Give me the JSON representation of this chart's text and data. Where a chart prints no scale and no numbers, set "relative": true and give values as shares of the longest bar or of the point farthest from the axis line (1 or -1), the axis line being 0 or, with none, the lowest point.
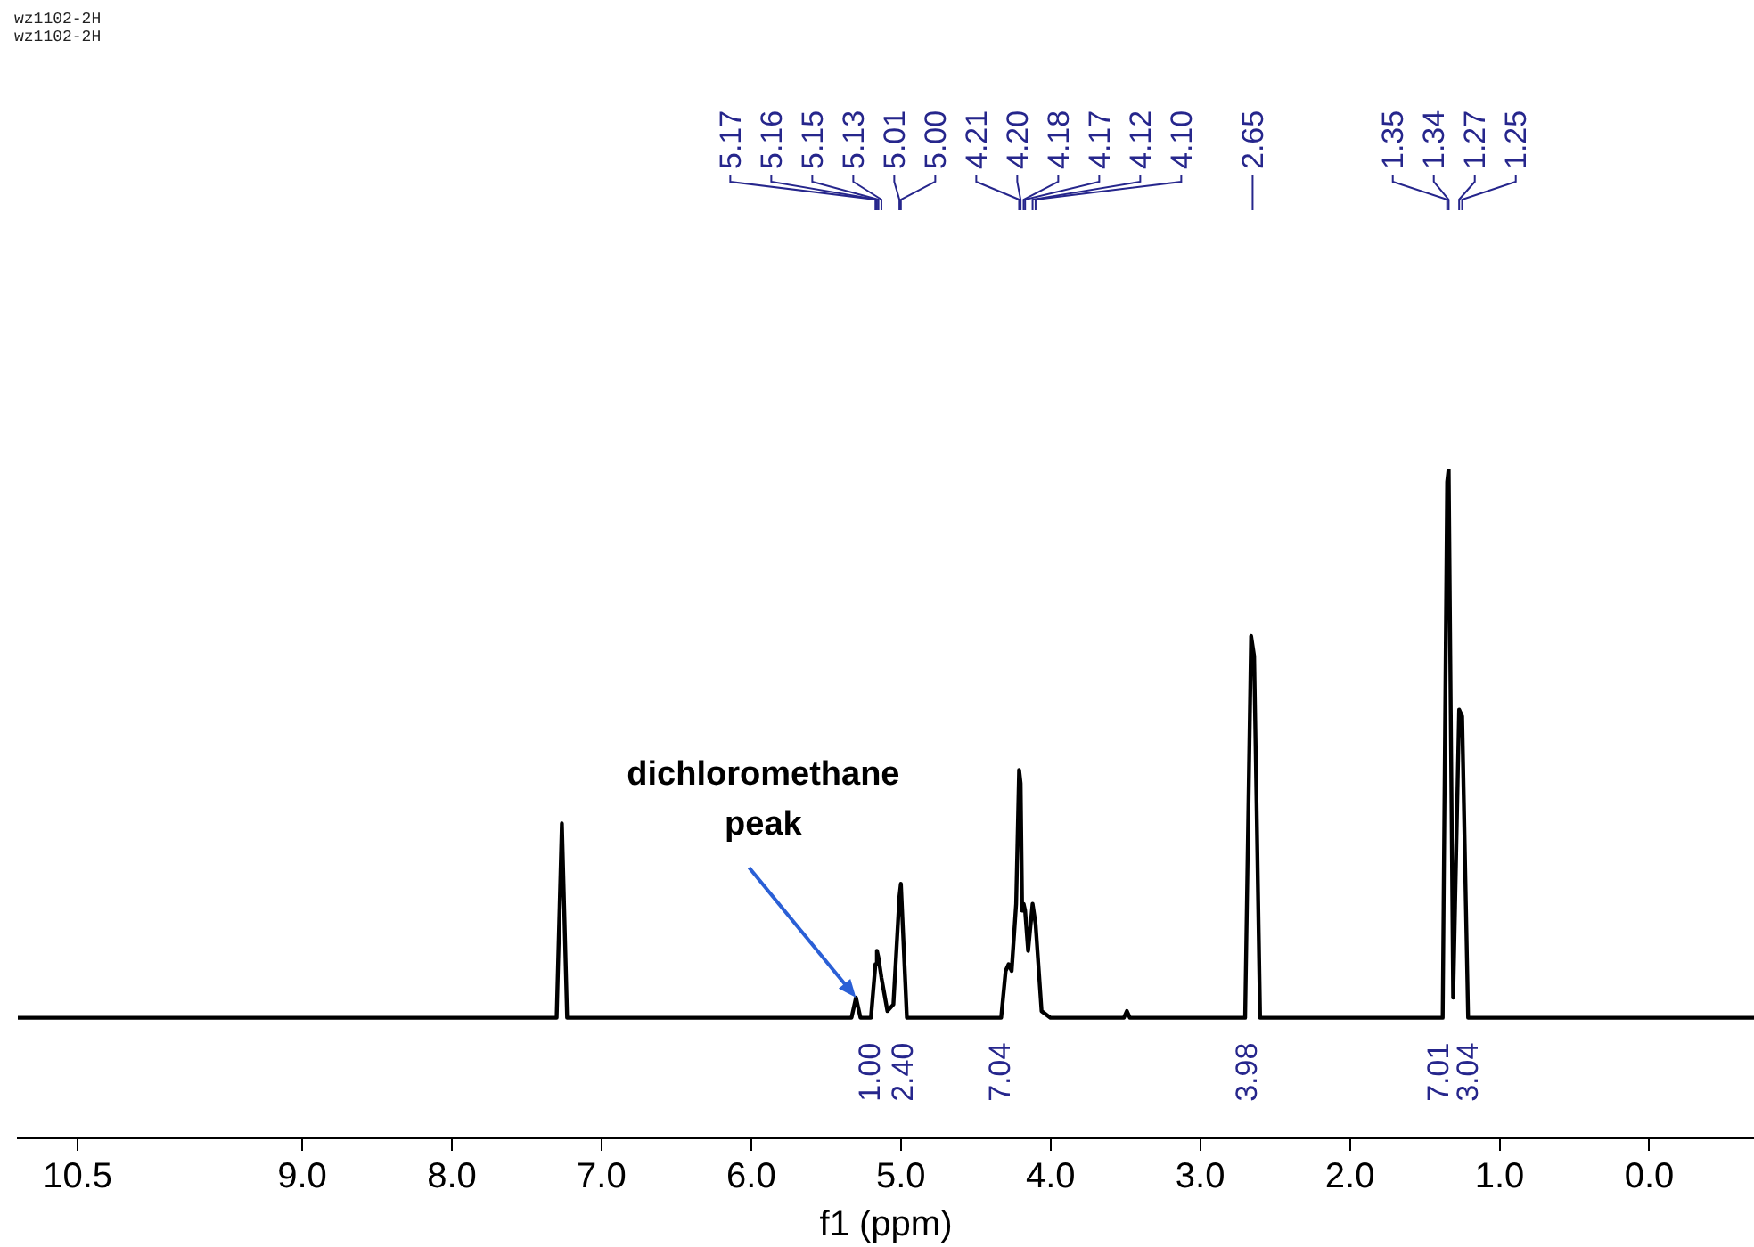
{
  "chart_data": {
    "type": "line",
    "title": "wz1102-2H",
    "subtitle": "wz1102-2H",
    "xlabel": "f1 (ppm)",
    "relative": true,
    "grid": false,
    "legend": false,
    "tick_labels": "x",
    "marker": "none",
    "line_style": "solid",
    "xlim": [
      10.9,
      -0.7
    ],
    "xticks": [
      {
        "value": 10.5,
        "label": "10.5"
      },
      {
        "value": 9,
        "label": "9.0"
      },
      {
        "value": 8,
        "label": "8.0"
      },
      {
        "value": 7,
        "label": "7.0"
      },
      {
        "value": 6,
        "label": "6.0"
      },
      {
        "value": 5,
        "label": "5.0"
      },
      {
        "value": 4,
        "label": "4.0"
      },
      {
        "value": 3,
        "label": "3.0"
      },
      {
        "value": 2,
        "label": "2.0"
      },
      {
        "value": 1,
        "label": "1.0"
      },
      {
        "value": 0,
        "label": "0.0"
      }
    ],
    "series": [
      {
        "color": "#000000",
        "x": [
          10.9,
          7.3,
          7.265,
          7.23,
          5.33,
          5.3,
          5.27,
          5.2,
          5.17,
          5.16,
          5.15,
          5.13,
          5.09,
          5.05,
          5.01,
          5.0,
          4.96,
          4.33,
          4.3,
          4.28,
          4.26,
          4.23,
          4.21,
          4.2,
          4.19,
          4.18,
          4.17,
          4.15,
          4.12,
          4.1,
          4.06,
          4.0,
          3.51,
          3.49,
          3.47,
          2.7,
          2.66,
          2.64,
          2.6,
          1.38,
          1.35,
          1.34,
          1.31,
          1.27,
          1.25,
          1.21,
          -0.7
        ],
        "values": [
          0.18,
          0.18,
          0.47,
          0.18,
          0.18,
          0.21,
          0.18,
          0.18,
          0.26,
          0.28,
          0.27,
          0.24,
          0.19,
          0.2,
          0.36,
          0.38,
          0.18,
          0.18,
          0.25,
          0.26,
          0.25,
          0.35,
          0.55,
          0.53,
          0.34,
          0.35,
          0.34,
          0.28,
          0.35,
          0.32,
          0.19,
          0.18,
          0.18,
          0.19,
          0.18,
          0.18,
          0.75,
          0.72,
          0.18,
          0.18,
          0.98,
          1,
          0.21,
          0.64,
          0.63,
          0.18,
          0.18
        ]
      }
    ],
    "annotations": [
      {
        "text": "5.17",
        "x": 5.17
      },
      {
        "text": "5.16",
        "x": 5.16
      },
      {
        "text": "5.15",
        "x": 5.15
      },
      {
        "text": "5.13",
        "x": 5.13
      },
      {
        "text": "5.01",
        "x": 5.01
      },
      {
        "text": "5.00",
        "x": 5.0
      },
      {
        "text": "4.21",
        "x": 4.21
      },
      {
        "text": "4.20",
        "x": 4.2
      },
      {
        "text": "4.18",
        "x": 4.18
      },
      {
        "text": "4.17",
        "x": 4.17
      },
      {
        "text": "4.12",
        "x": 4.12
      },
      {
        "text": "4.10",
        "x": 4.1
      },
      {
        "text": "2.65",
        "x": 2.65
      },
      {
        "text": "1.35",
        "x": 1.35
      },
      {
        "text": "1.34",
        "x": 1.34
      },
      {
        "text": "1.27",
        "x": 1.27
      },
      {
        "text": "1.25",
        "x": 1.25
      },
      {
        "text": "1.00",
        "x": 5.2,
        "y": 0.18
      },
      {
        "text": "2.40",
        "x": 4.98,
        "y": 0.18
      },
      {
        "text": "7.04",
        "x": 4.33,
        "y": 0.18
      },
      {
        "text": "3.98",
        "x": 2.68,
        "y": 0.18
      },
      {
        "text": "7.01",
        "x": 1.4,
        "y": 0.18
      },
      {
        "text": "3.04",
        "x": 1.2,
        "y": 0.18
      },
      {
        "text": "dichloromethane peak",
        "x": 5.3,
        "y": 0.21
      }
    ]
  }
}
